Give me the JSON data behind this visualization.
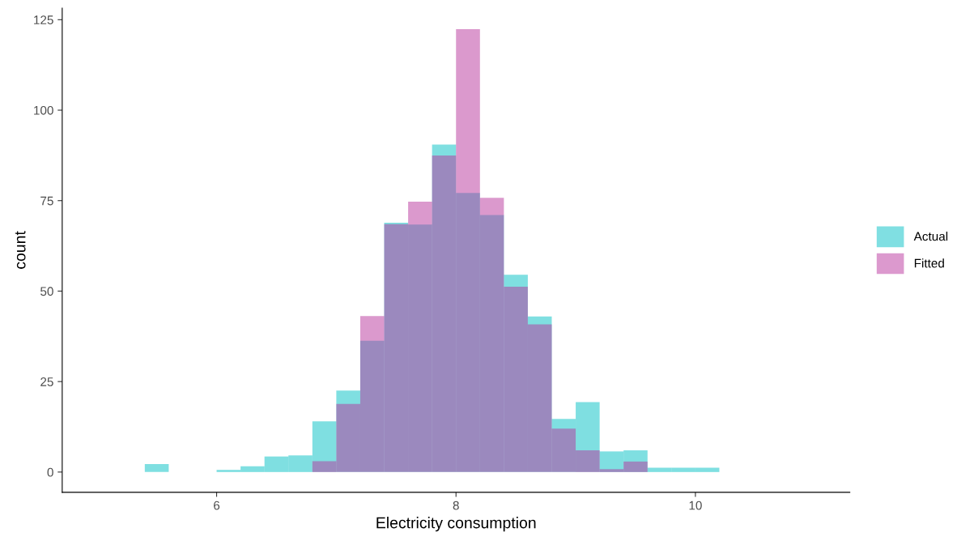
{
  "chart_data": {
    "type": "histogram",
    "xlabel": "Electricity consumption",
    "ylabel": "count",
    "bins": [
      5.4,
      5.6,
      5.8,
      6.0,
      6.2,
      6.4,
      6.6,
      6.8,
      7.0,
      7.2,
      7.4,
      7.6,
      7.8,
      8.0,
      8.2,
      8.4,
      8.6,
      8.8,
      9.0,
      9.2,
      9.4,
      9.6,
      9.8,
      10.0,
      10.2
    ],
    "series": [
      {
        "name": "Actual",
        "color": "#00bfc4",
        "values": [
          2.2,
          0,
          0,
          0.6,
          1.6,
          4.3,
          4.6,
          14.0,
          22.5,
          36.3,
          68.9,
          68.4,
          90.5,
          77.1,
          71.0,
          54.5,
          43.0,
          14.7,
          19.3,
          5.7,
          6.0,
          1.2,
          1.2,
          1.2
        ]
      },
      {
        "name": "Fitted",
        "color": "#b8339c",
        "values": [
          0,
          0,
          0,
          0,
          0,
          0,
          0,
          3.0,
          18.8,
          43.1,
          68.5,
          74.7,
          87.5,
          122.4,
          75.8,
          51.2,
          40.8,
          12.0,
          6.0,
          0.8,
          2.9,
          0,
          0,
          0
        ]
      }
    ],
    "xlim": [
      4.71,
      11.29
    ],
    "ylim": [
      -5.6,
      128.2
    ],
    "xticks": [
      6,
      8,
      10
    ],
    "yticks": [
      0,
      25,
      50,
      75,
      100,
      125
    ],
    "grid": false,
    "legend": "right"
  }
}
